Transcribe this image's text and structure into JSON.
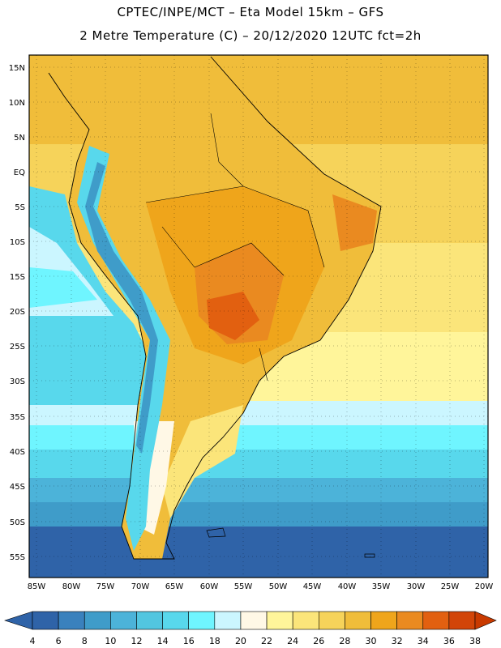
{
  "header": {
    "line1": "CPTEC/INPE/MCT –  Eta Model 15km – GFS",
    "line2": "2 Metre Temperature (C) – 20/12/2020 12UTC fct=2h"
  },
  "map": {
    "lat_labels": [
      "15N",
      "10N",
      "5N",
      "EQ",
      "5S",
      "10S",
      "15S",
      "20S",
      "25S",
      "30S",
      "35S",
      "40S",
      "45S",
      "50S",
      "55S"
    ],
    "lon_labels": [
      "85W",
      "80W",
      "75W",
      "70W",
      "65W",
      "60W",
      "55W",
      "50W",
      "45W",
      "40W",
      "35W",
      "30W",
      "25W",
      "20W"
    ]
  },
  "colorbar": {
    "values": [
      "4",
      "6",
      "8",
      "10",
      "12",
      "14",
      "16",
      "18",
      "20",
      "22",
      "24",
      "26",
      "28",
      "30",
      "32",
      "34",
      "36",
      "38"
    ],
    "colors": [
      "#2f63a8",
      "#3a81bd",
      "#3f9cc9",
      "#4cb3d9",
      "#52c6e0",
      "#58d8ec",
      "#6ff5ff",
      "#cbf6ff",
      "#fff8e6",
      "#fff59a",
      "#fbe57a",
      "#f6d35a",
      "#f0bd3a",
      "#efa51b",
      "#ea8a20",
      "#e26010",
      "#d24508",
      "#c93a00"
    ]
  }
}
